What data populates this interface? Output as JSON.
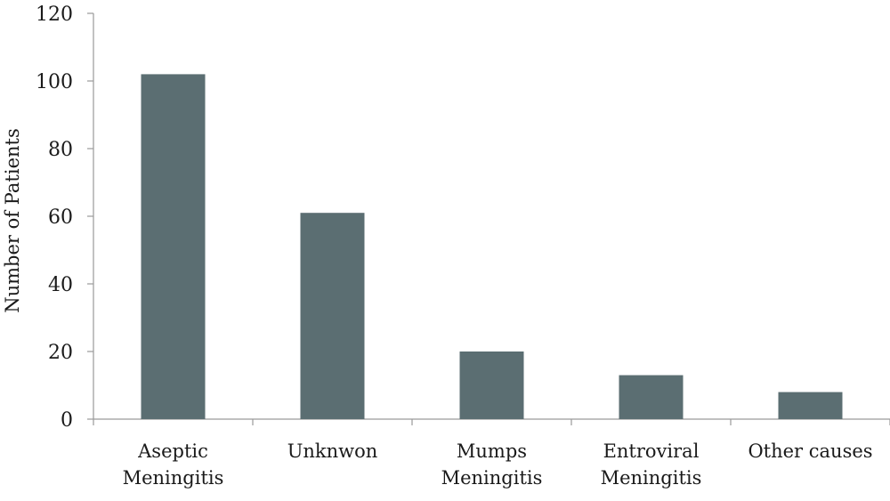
{
  "chart_data": {
    "type": "bar",
    "title": "",
    "xlabel": "",
    "ylabel": "Number of Patients",
    "categories": [
      [
        "Aseptic",
        "Meningitis"
      ],
      [
        "Unknwon"
      ],
      [
        "Mumps",
        "Meningitis"
      ],
      [
        "Entroviral",
        "Meningitis"
      ],
      [
        "Other causes"
      ]
    ],
    "values": [
      102,
      61,
      20,
      13,
      8
    ],
    "ylim": [
      0,
      120
    ],
    "yticks": [
      0,
      20,
      40,
      60,
      80,
      100,
      120
    ],
    "grid": false,
    "legend": "none",
    "colors": {
      "bar": "#5b6e72",
      "axis": "#9a9a9a",
      "text": "#1a1a1a"
    }
  }
}
